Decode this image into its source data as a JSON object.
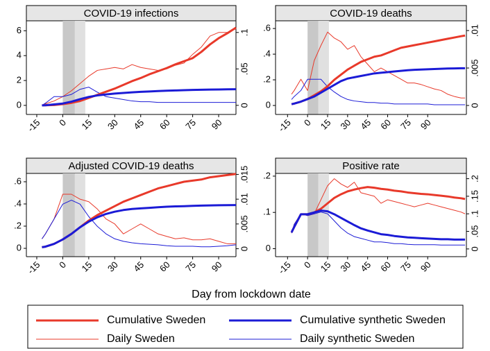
{
  "x_label": "Day from lockdown date",
  "chart_data": [
    {
      "type": "line",
      "title": "COVID-19 infections",
      "x": [
        -12,
        -10,
        -5,
        0,
        5,
        10,
        15,
        20,
        25,
        30,
        35,
        40,
        45,
        50,
        55,
        60,
        65,
        70,
        75,
        80,
        85,
        90,
        95,
        100
      ],
      "xlim": [
        -21,
        100
      ],
      "xticks": [
        -15,
        0,
        15,
        30,
        45,
        60,
        75,
        90
      ],
      "ylim": [
        -0.73,
        6.8
      ],
      "yticks": [
        0,
        2,
        4,
        6
      ],
      "y2lim": [
        -0.0125,
        0.116
      ],
      "y2ticks": [
        0,
        {
          "value": 0.05,
          "label": ".05"
        },
        {
          "value": 0.1,
          "label": ".1"
        }
      ],
      "spans": [
        {
          "from": 0,
          "to": 7,
          "color": "#c8c8c8"
        },
        {
          "from": 7,
          "to": 13,
          "color": "#e0e0e0"
        }
      ],
      "series": [
        {
          "name": "Cumulative Sweden",
          "color": "#e8392a",
          "width": 3,
          "axis": "y",
          "values": [
            0,
            0.01,
            0.03,
            0.1,
            0.2,
            0.35,
            0.6,
            0.85,
            1.1,
            1.35,
            1.65,
            1.95,
            2.2,
            2.5,
            2.75,
            3.0,
            3.3,
            3.55,
            3.8,
            4.3,
            4.9,
            5.4,
            5.8,
            6.25
          ]
        },
        {
          "name": "Daily Sweden",
          "color": "#e8392a",
          "width": 1,
          "axis": "y2",
          "values": [
            0,
            0.002,
            0.006,
            0.012,
            0.02,
            0.03,
            0.04,
            0.048,
            0.05,
            0.052,
            0.05,
            0.056,
            0.052,
            0.05,
            0.048,
            0.05,
            0.055,
            0.058,
            0.07,
            0.08,
            0.095,
            0.1,
            0.1,
            0.105
          ]
        },
        {
          "name": "Cumulative synthetic Sweden",
          "color": "#1b1bd6",
          "width": 3,
          "axis": "y",
          "values": [
            0,
            0.01,
            0.08,
            0.15,
            0.3,
            0.5,
            0.68,
            0.8,
            0.88,
            0.95,
            1.0,
            1.05,
            1.09,
            1.12,
            1.15,
            1.18,
            1.2,
            1.22,
            1.24,
            1.26,
            1.27,
            1.28,
            1.29,
            1.3
          ]
        },
        {
          "name": "Daily synthetic Sweden",
          "color": "#1b1bd6",
          "width": 1,
          "axis": "y2",
          "values": [
            0,
            0.003,
            0.012,
            0.012,
            0.015,
            0.022,
            0.025,
            0.018,
            0.012,
            0.01,
            0.008,
            0.006,
            0.005,
            0.005,
            0.004,
            0.004,
            0.004,
            0.004,
            0.004,
            0.004,
            0.004,
            0.004,
            0.004,
            0.004
          ]
        }
      ]
    },
    {
      "type": "line",
      "title": "COVID-19 deaths",
      "x": [
        -12,
        -10,
        -5,
        0,
        5,
        10,
        15,
        20,
        25,
        30,
        35,
        40,
        45,
        50,
        55,
        60,
        65,
        70,
        75,
        80,
        85,
        90,
        95,
        100,
        105,
        110,
        115,
        118
      ],
      "xlim": [
        -24,
        119
      ],
      "xticks": [
        -15,
        0,
        15,
        30,
        45,
        60,
        75,
        90
      ],
      "ylim": [
        -0.07,
        0.66
      ],
      "yticks": [
        0,
        {
          "value": 0.2,
          "label": ".2"
        },
        {
          "value": 0.4,
          "label": ".4"
        },
        {
          "value": 0.6,
          "label": ".6"
        }
      ],
      "y2lim": [
        -0.0012,
        0.0113
      ],
      "y2ticks": [
        0,
        {
          "value": 0.005,
          "label": ".005"
        },
        {
          "value": 0.01,
          "label": ".01"
        }
      ],
      "spans": [
        {
          "from": 0,
          "to": 8,
          "color": "#c8c8c8"
        },
        {
          "from": 8,
          "to": 16,
          "color": "#e0e0e0"
        }
      ],
      "series": [
        {
          "name": "Cumulative Sweden",
          "color": "#e8392a",
          "width": 3,
          "axis": "y",
          "values": [
            0.01,
            0.015,
            0.03,
            0.05,
            0.08,
            0.11,
            0.15,
            0.2,
            0.24,
            0.28,
            0.31,
            0.34,
            0.36,
            0.38,
            0.39,
            0.41,
            0.43,
            0.45,
            0.46,
            0.47,
            0.48,
            0.49,
            0.5,
            0.51,
            0.52,
            0.53,
            0.54,
            0.545
          ]
        },
        {
          "name": "Daily Sweden",
          "color": "#e8392a",
          "width": 1,
          "axis": "y2",
          "values": [
            0.0015,
            0.002,
            0.0035,
            0.002,
            0.006,
            0.008,
            0.0098,
            0.009,
            0.0085,
            0.0075,
            0.008,
            0.0065,
            0.0055,
            0.0045,
            0.005,
            0.0045,
            0.004,
            0.0035,
            0.003,
            0.003,
            0.0028,
            0.0025,
            0.0022,
            0.002,
            0.0015,
            0.0012,
            0.001,
            0.001
          ]
        },
        {
          "name": "Cumulative synthetic Sweden",
          "color": "#1b1bd6",
          "width": 3,
          "axis": "y",
          "values": [
            0.01,
            0.015,
            0.03,
            0.05,
            0.07,
            0.1,
            0.13,
            0.16,
            0.19,
            0.21,
            0.22,
            0.23,
            0.24,
            0.25,
            0.255,
            0.26,
            0.265,
            0.27,
            0.275,
            0.278,
            0.28,
            0.282,
            0.284,
            0.286,
            0.288,
            0.289,
            0.29,
            0.29
          ]
        },
        {
          "name": "Daily synthetic Sweden",
          "color": "#1b1bd6",
          "width": 1,
          "axis": "y2",
          "values": [
            0.0008,
            0.0012,
            0.002,
            0.0035,
            0.0035,
            0.0035,
            0.0025,
            0.0018,
            0.0012,
            0.0008,
            0.0006,
            0.0005,
            0.0004,
            0.0004,
            0.0003,
            0.0003,
            0.0002,
            0.0002,
            0.0002,
            0.0002,
            0.0002,
            0.0002,
            0.0001,
            0.0001,
            0.0001,
            0.0001,
            0.0001,
            0.0001
          ]
        }
      ]
    },
    {
      "type": "line",
      "title": "Adjusted COVID-19 deaths",
      "x": [
        -12,
        -10,
        -5,
        0,
        5,
        10,
        15,
        20,
        25,
        30,
        35,
        40,
        45,
        50,
        55,
        60,
        65,
        70,
        75,
        80,
        85,
        90,
        95,
        100
      ],
      "xlim": [
        -21,
        100
      ],
      "xticks": [
        -15,
        0,
        15,
        30,
        45,
        60,
        75,
        90
      ],
      "ylim": [
        -0.075,
        0.675
      ],
      "yticks": [
        0,
        {
          "value": 0.2,
          "label": ".2"
        },
        {
          "value": 0.4,
          "label": ".4"
        },
        {
          "value": 0.6,
          "label": ".6"
        }
      ],
      "y2lim": [
        -0.0016,
        0.0152
      ],
      "y2ticks": [
        0,
        {
          "value": 0.005,
          "label": ".005"
        },
        {
          "value": 0.01,
          "label": ".01"
        },
        {
          "value": 0.015,
          "label": ".015"
        }
      ],
      "spans": [
        {
          "from": 0,
          "to": 7,
          "color": "#c8c8c8"
        },
        {
          "from": 7,
          "to": 13,
          "color": "#e0e0e0"
        }
      ],
      "series": [
        {
          "name": "Cumulative Sweden",
          "color": "#e8392a",
          "width": 3,
          "axis": "y",
          "values": [
            0.01,
            0.015,
            0.04,
            0.08,
            0.13,
            0.19,
            0.25,
            0.3,
            0.34,
            0.38,
            0.42,
            0.45,
            0.48,
            0.51,
            0.54,
            0.56,
            0.58,
            0.6,
            0.61,
            0.62,
            0.64,
            0.65,
            0.66,
            0.67
          ]
        },
        {
          "name": "Daily Sweden",
          "color": "#e8392a",
          "width": 1,
          "axis": "y2",
          "values": [
            0.002,
            0.003,
            0.006,
            0.011,
            0.011,
            0.01,
            0.0095,
            0.008,
            0.006,
            0.005,
            0.003,
            0.004,
            0.005,
            0.004,
            0.003,
            0.0025,
            0.002,
            0.0022,
            0.0018,
            0.0018,
            0.002,
            0.0015,
            0.001,
            0.001
          ]
        },
        {
          "name": "Cumulative synthetic Sweden",
          "color": "#1b1bd6",
          "width": 3,
          "axis": "y",
          "values": [
            0.01,
            0.015,
            0.04,
            0.08,
            0.13,
            0.19,
            0.24,
            0.28,
            0.31,
            0.33,
            0.345,
            0.355,
            0.36,
            0.365,
            0.37,
            0.375,
            0.378,
            0.38,
            0.383,
            0.385,
            0.387,
            0.388,
            0.389,
            0.39
          ]
        },
        {
          "name": "Daily synthetic Sweden",
          "color": "#1b1bd6",
          "width": 1,
          "axis": "y2",
          "values": [
            0.002,
            0.003,
            0.006,
            0.009,
            0.0098,
            0.009,
            0.0065,
            0.0045,
            0.003,
            0.002,
            0.0015,
            0.0012,
            0.001,
            0.0009,
            0.0008,
            0.0006,
            0.0005,
            0.0005,
            0.0005,
            0.0004,
            0.0004,
            0.0005,
            0.0006,
            0.0008
          ]
        }
      ]
    },
    {
      "type": "line",
      "title": "Positive rate",
      "x": [
        -12,
        -10,
        -5,
        0,
        5,
        10,
        15,
        20,
        25,
        30,
        35,
        40,
        45,
        50,
        55,
        60,
        65,
        70,
        75,
        80,
        85,
        90,
        95,
        100,
        105,
        110,
        115,
        118
      ],
      "xlim": [
        -24,
        119
      ],
      "xticks": [
        -15,
        0,
        15,
        30,
        45,
        60,
        75,
        90
      ],
      "ylim": [
        -0.022,
        0.2075
      ],
      "yticks": [
        0,
        {
          "value": 0.1,
          "label": ".1"
        },
        {
          "value": 0.2,
          "label": ".2"
        }
      ],
      "y2lim": [
        -0.022,
        0.215
      ],
      "y2ticks": [
        0,
        {
          "value": 0.05,
          "label": ".05"
        },
        {
          "value": 0.1,
          "label": ".1"
        },
        {
          "value": 0.15,
          "label": ".15"
        },
        {
          "value": 0.2,
          "label": ".2"
        }
      ],
      "spans": [
        {
          "from": 0,
          "to": 8,
          "color": "#c8c8c8"
        },
        {
          "from": 8,
          "to": 16,
          "color": "#e0e0e0"
        }
      ],
      "series": [
        {
          "name": "Cumulative Sweden",
          "color": "#e8392a",
          "width": 3,
          "axis": "y",
          "values": [
            0.045,
            0.06,
            0.095,
            0.095,
            0.1,
            0.11,
            0.125,
            0.14,
            0.15,
            0.158,
            0.163,
            0.167,
            0.17,
            0.168,
            0.165,
            0.163,
            0.16,
            0.158,
            0.155,
            0.153,
            0.151,
            0.15,
            0.148,
            0.146,
            0.144,
            0.141,
            0.139,
            0.137
          ]
        },
        {
          "name": "Daily Sweden",
          "color": "#e8392a",
          "width": 1,
          "axis": "y2",
          "values": [
            0.045,
            0.07,
            0.1,
            0.095,
            0.1,
            0.14,
            0.18,
            0.2,
            0.185,
            0.175,
            0.19,
            0.16,
            0.155,
            0.15,
            0.13,
            0.14,
            0.135,
            0.13,
            0.125,
            0.12,
            0.125,
            0.13,
            0.125,
            0.12,
            0.115,
            0.11,
            0.105,
            0.1
          ]
        },
        {
          "name": "Cumulative synthetic Sweden",
          "color": "#1b1bd6",
          "width": 3,
          "axis": "y",
          "values": [
            0.045,
            0.06,
            0.095,
            0.095,
            0.1,
            0.105,
            0.103,
            0.095,
            0.085,
            0.075,
            0.065,
            0.056,
            0.05,
            0.045,
            0.04,
            0.038,
            0.035,
            0.033,
            0.031,
            0.03,
            0.029,
            0.028,
            0.027,
            0.026,
            0.026,
            0.025,
            0.025,
            0.025
          ]
        },
        {
          "name": "Daily synthetic Sweden",
          "color": "#1b1bd6",
          "width": 1,
          "axis": "y2",
          "values": [
            0.045,
            0.07,
            0.1,
            0.095,
            0.1,
            0.105,
            0.1,
            0.08,
            0.06,
            0.045,
            0.035,
            0.03,
            0.025,
            0.02,
            0.02,
            0.018,
            0.015,
            0.015,
            0.013,
            0.012,
            0.012,
            0.012,
            0.012,
            0.011,
            0.011,
            0.011,
            0.011,
            0.011
          ]
        }
      ]
    }
  ]
}
